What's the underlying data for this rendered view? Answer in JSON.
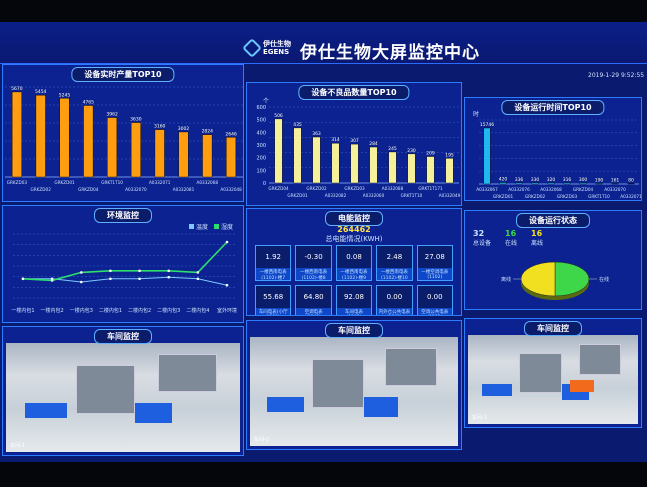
{
  "header": {
    "logo_cn": "伊仕生物",
    "logo_en": "EGENS",
    "title": "伊仕生物大屏监控中心",
    "datetime": "2019-1-29 9:52:55"
  },
  "colors": {
    "background": "#0b2290",
    "border": "#2e7cff",
    "orange_bar": "#ff9d10",
    "yellow_bar": "#f6f09a",
    "cyan_bar": "#1fb8f0",
    "temperature": "#7fc8ff",
    "humidity": "#2ee06b",
    "pie_online": "#3fd74a",
    "pie_offline": "#f0e020"
  },
  "output_panel": {
    "title": "设备实时产量TOP10"
  },
  "defect_panel": {
    "title": "设备不良品数量TOP10"
  },
  "runtime_panel": {
    "title": "设备运行时间TOP10"
  },
  "env_panel": {
    "title": "环境监控"
  },
  "energy_panel": {
    "title": "电能监控",
    "total": "264462",
    "total_label": "总电能情况(KWH)",
    "meters": [
      {
        "value": "1.92",
        "label": "一楼西南电表(1102)-楼7"
      },
      {
        "value": "-0.30",
        "label": "一楼西南电表(1102)-楼8"
      },
      {
        "value": "0.08",
        "label": "一楼西南电表(1102)-楼9"
      },
      {
        "value": "2.48",
        "label": "一楼西南电表(1102)-楼10"
      },
      {
        "value": "27.08",
        "label": "一楼空调电表(1102)"
      },
      {
        "value": "55.68",
        "label": "车间电表(小厅1203)"
      },
      {
        "value": "64.80",
        "label": "空调电表(1202)"
      },
      {
        "value": "92.08",
        "label": "车间电表(1203)"
      },
      {
        "value": "0.00",
        "label": "内外仓公共电表(1202)"
      },
      {
        "value": "0.00",
        "label": "空调公共电表(1202)"
      }
    ]
  },
  "status_panel": {
    "title": "设备运行状态",
    "total": "32",
    "total_label": "总设备",
    "online": "16",
    "online_label": "在线",
    "offline": "16",
    "offline_label": "离线"
  },
  "cameras": [
    {
      "title": "车间监控",
      "label": "车间-1"
    },
    {
      "title": "车间监控",
      "label": "车间-2"
    },
    {
      "title": "车间监控",
      "label": "车间-3"
    }
  ],
  "chart_data": [
    {
      "type": "bar",
      "title": "设备实时产量TOP10",
      "categories": [
        "GRKZD03",
        "GRKZD02",
        "GRKZD01",
        "GRKZD04",
        "GRKT1T10",
        "A0332070",
        "A0332071",
        "A0332081",
        "A0332068",
        "A0332048"
      ],
      "values": [
        5670,
        5454,
        5245,
        4765,
        3962,
        3630,
        3160,
        3002,
        2824,
        2646
      ],
      "ylim": [
        0,
        6000
      ],
      "grid": true
    },
    {
      "type": "bar",
      "title": "设备不良品数量TOP10",
      "ylabel": "个",
      "categories": [
        "GRKZD04",
        "GRKZD01",
        "GRKZD02",
        "A0332082",
        "GRKZD03",
        "A0332060",
        "A0332088",
        "GRKT1T10",
        "GRKT1T171",
        "A0332049"
      ],
      "values": [
        506,
        435,
        363,
        314,
        307,
        284,
        245,
        230,
        209,
        195
      ],
      "ylim": [
        0,
        600
      ],
      "yticks": [
        0,
        100,
        200,
        300,
        400,
        500,
        600
      ],
      "grid": true
    },
    {
      "type": "bar",
      "title": "设备运行时间TOP10",
      "ylabel": "时",
      "categories": [
        "A0332067",
        "GRKZD01",
        "A0332076",
        "GRKZD02",
        "A0332068",
        "GRKZD03",
        "GRKZD04",
        "GRKT1T10",
        "A0332070",
        "A0332071"
      ],
      "values": [
        15746,
        420,
        336,
        330,
        320,
        316,
        300,
        190,
        161,
        80
      ],
      "ylim": [
        0,
        18000
      ],
      "grid": true
    },
    {
      "type": "line",
      "title": "环境监控",
      "categories": [
        "一楼内包1",
        "一楼内包2",
        "一楼内包3",
        "二楼内包1",
        "二楼内包2",
        "二楼内包3",
        "二楼内包4",
        "室外环境"
      ],
      "series": [
        {
          "name": "温度",
          "values": [
            22,
            22,
            20,
            22,
            22,
            23,
            22,
            18
          ]
        },
        {
          "name": "湿度",
          "values": [
            22,
            21,
            26,
            27,
            27,
            27,
            26,
            45
          ]
        }
      ],
      "ylim": [
        10,
        50
      ],
      "legend": "top-right"
    },
    {
      "type": "pie",
      "title": "设备运行状态",
      "categories": [
        "在线",
        "离线"
      ],
      "values": [
        16,
        16
      ]
    }
  ]
}
